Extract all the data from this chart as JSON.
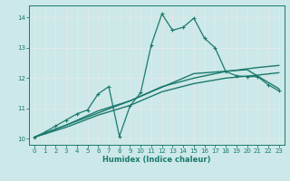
{
  "xlabel": "Humidex (Indice chaleur)",
  "xlim": [
    -0.5,
    23.5
  ],
  "ylim": [
    9.8,
    14.4
  ],
  "xticks": [
    0,
    1,
    2,
    3,
    4,
    5,
    6,
    7,
    8,
    9,
    10,
    11,
    12,
    13,
    14,
    15,
    16,
    17,
    18,
    19,
    20,
    21,
    22,
    23
  ],
  "yticks": [
    10,
    11,
    12,
    13,
    14
  ],
  "background_color": "#cce8e8",
  "grid_color": "#e8e8e8",
  "line_color": "#1a7a6e",
  "lines": [
    {
      "x": [
        0,
        3,
        6,
        9,
        12,
        15,
        18,
        21,
        23
      ],
      "y": [
        10.05,
        10.38,
        10.78,
        11.1,
        11.55,
        11.82,
        12.0,
        12.1,
        12.18
      ],
      "marker": null,
      "linewidth": 1.0
    },
    {
      "x": [
        0,
        3,
        6,
        9,
        12,
        15,
        18,
        21,
        23
      ],
      "y": [
        10.05,
        10.45,
        10.92,
        11.25,
        11.72,
        12.0,
        12.22,
        12.35,
        12.42
      ],
      "marker": null,
      "linewidth": 1.0
    },
    {
      "x": [
        0,
        9,
        15,
        20,
        23
      ],
      "y": [
        10.05,
        11.25,
        12.15,
        12.28,
        11.65
      ],
      "marker": null,
      "linewidth": 1.0
    },
    {
      "x": [
        0,
        1,
        2,
        3,
        4,
        5,
        6,
        7,
        8,
        9,
        10,
        11,
        12,
        13,
        14,
        15,
        16,
        17,
        18,
        19,
        20,
        21,
        22,
        23
      ],
      "y": [
        10.05,
        10.22,
        10.42,
        10.62,
        10.82,
        10.95,
        11.48,
        11.72,
        10.08,
        11.08,
        11.52,
        13.1,
        14.12,
        13.58,
        13.68,
        13.98,
        13.32,
        13.0,
        12.22,
        12.08,
        12.05,
        12.05,
        11.78,
        11.58
      ],
      "marker": "+",
      "markersize": 3.5,
      "linewidth": 0.9
    }
  ]
}
